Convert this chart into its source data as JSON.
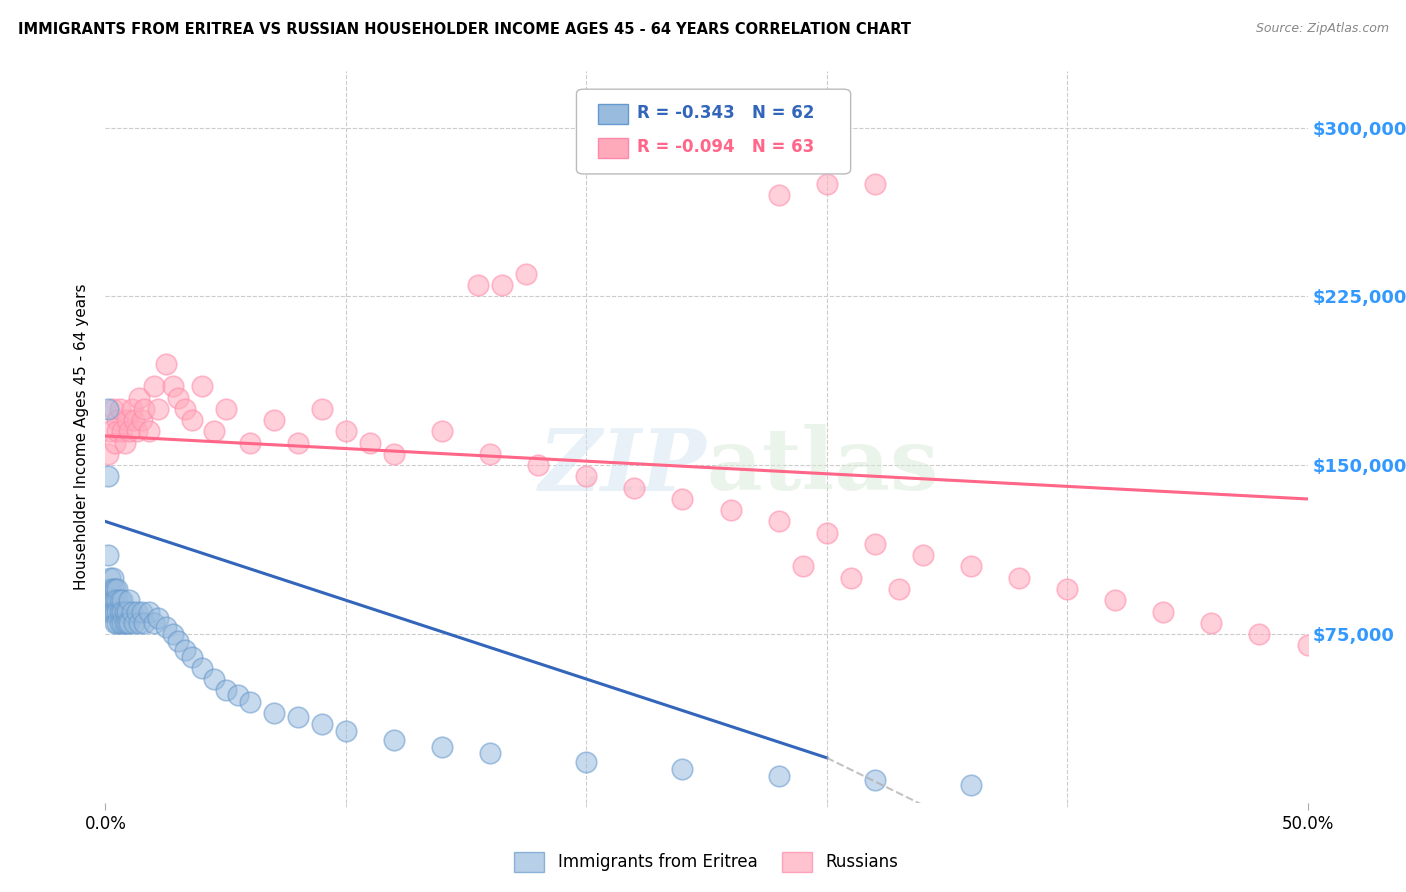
{
  "title": "IMMIGRANTS FROM ERITREA VS RUSSIAN HOUSEHOLDER INCOME AGES 45 - 64 YEARS CORRELATION CHART",
  "source": "Source: ZipAtlas.com",
  "ylabel": "Householder Income Ages 45 - 64 years",
  "ytick_labels": [
    "$75,000",
    "$150,000",
    "$225,000",
    "$300,000"
  ],
  "ytick_values": [
    75000,
    150000,
    225000,
    300000
  ],
  "ymin": 0,
  "ymax": 325000,
  "xmin": 0.0,
  "xmax": 0.5,
  "legend_r1": "R = -0.343",
  "legend_n1": "N = 62",
  "legend_r2": "R = -0.094",
  "legend_n2": "N = 63",
  "watermark_zip": "ZIP",
  "watermark_atlas": "atlas",
  "blue_fill": "#99BBDD",
  "blue_edge": "#6699CC",
  "pink_fill": "#FFAABB",
  "pink_edge": "#FF88AA",
  "blue_line_color": "#3366BB",
  "pink_line_color": "#FF6688",
  "ytick_color": "#3399FF",
  "background_color": "#FFFFFF",
  "eritrea_x": [
    0.001,
    0.001,
    0.001,
    0.002,
    0.002,
    0.002,
    0.002,
    0.003,
    0.003,
    0.003,
    0.003,
    0.004,
    0.004,
    0.004,
    0.004,
    0.005,
    0.005,
    0.005,
    0.005,
    0.006,
    0.006,
    0.006,
    0.007,
    0.007,
    0.007,
    0.008,
    0.008,
    0.009,
    0.009,
    0.01,
    0.01,
    0.011,
    0.012,
    0.013,
    0.014,
    0.015,
    0.016,
    0.018,
    0.02,
    0.022,
    0.025,
    0.028,
    0.03,
    0.033,
    0.036,
    0.04,
    0.045,
    0.05,
    0.055,
    0.06,
    0.07,
    0.08,
    0.09,
    0.1,
    0.12,
    0.14,
    0.16,
    0.2,
    0.24,
    0.28,
    0.32,
    0.36
  ],
  "eritrea_y": [
    175000,
    145000,
    110000,
    100000,
    95000,
    90000,
    85000,
    100000,
    95000,
    90000,
    85000,
    95000,
    90000,
    85000,
    80000,
    95000,
    90000,
    85000,
    80000,
    90000,
    85000,
    80000,
    90000,
    85000,
    80000,
    85000,
    80000,
    85000,
    80000,
    90000,
    80000,
    85000,
    80000,
    85000,
    80000,
    85000,
    80000,
    85000,
    80000,
    82000,
    78000,
    75000,
    72000,
    68000,
    65000,
    60000,
    55000,
    50000,
    48000,
    45000,
    40000,
    38000,
    35000,
    32000,
    28000,
    25000,
    22000,
    18000,
    15000,
    12000,
    10000,
    8000
  ],
  "russian_x": [
    0.001,
    0.002,
    0.003,
    0.004,
    0.005,
    0.005,
    0.006,
    0.007,
    0.008,
    0.009,
    0.01,
    0.011,
    0.012,
    0.013,
    0.014,
    0.015,
    0.016,
    0.018,
    0.02,
    0.022,
    0.025,
    0.028,
    0.03,
    0.033,
    0.036,
    0.04,
    0.045,
    0.05,
    0.06,
    0.07,
    0.08,
    0.09,
    0.1,
    0.11,
    0.12,
    0.14,
    0.16,
    0.18,
    0.2,
    0.22,
    0.24,
    0.26,
    0.28,
    0.3,
    0.32,
    0.34,
    0.36,
    0.38,
    0.4,
    0.42,
    0.44,
    0.46,
    0.48,
    0.5,
    0.28,
    0.3,
    0.32,
    0.155,
    0.165,
    0.175,
    0.29,
    0.31,
    0.33
  ],
  "russian_y": [
    155000,
    165000,
    175000,
    160000,
    170000,
    165000,
    175000,
    165000,
    160000,
    170000,
    165000,
    175000,
    170000,
    165000,
    180000,
    170000,
    175000,
    165000,
    185000,
    175000,
    195000,
    185000,
    180000,
    175000,
    170000,
    185000,
    165000,
    175000,
    160000,
    170000,
    160000,
    175000,
    165000,
    160000,
    155000,
    165000,
    155000,
    150000,
    145000,
    140000,
    135000,
    130000,
    125000,
    120000,
    115000,
    110000,
    105000,
    100000,
    95000,
    90000,
    85000,
    80000,
    75000,
    70000,
    270000,
    275000,
    275000,
    230000,
    230000,
    235000,
    105000,
    100000,
    95000
  ]
}
